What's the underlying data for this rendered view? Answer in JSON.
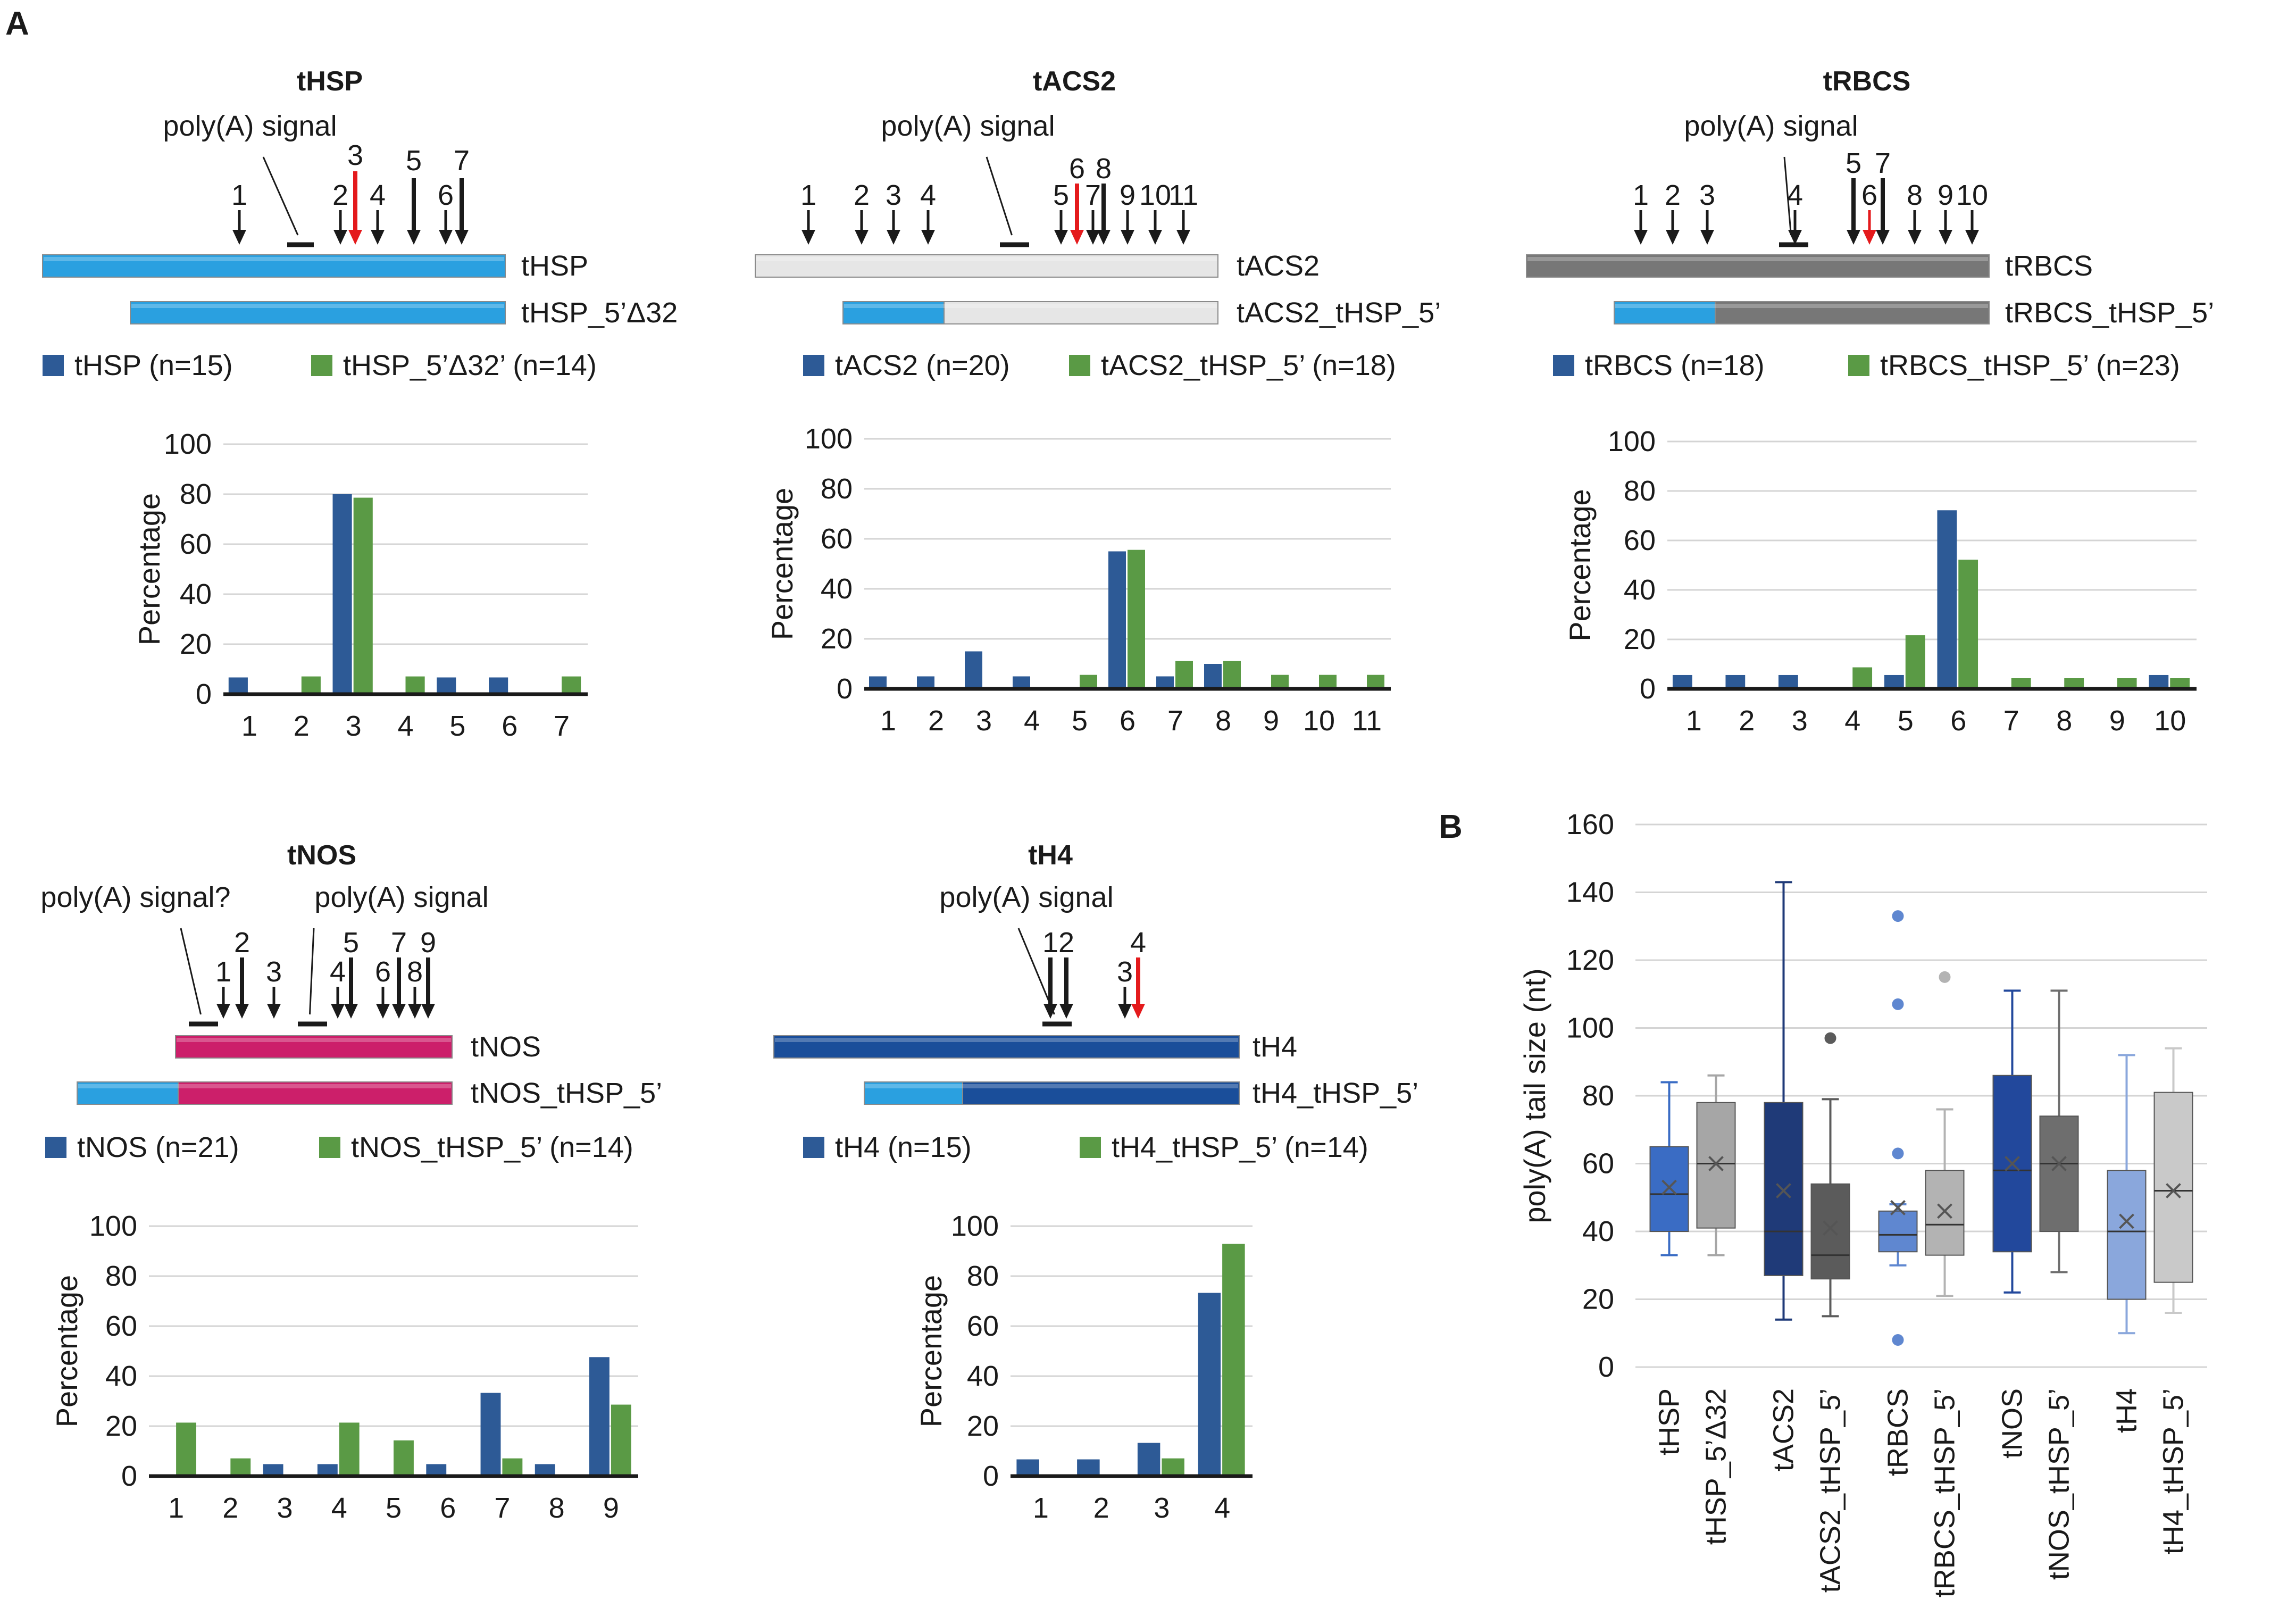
{
  "panel_labels": {
    "a": "A",
    "b": "B"
  },
  "colors": {
    "blue_bar": "#2d5a96",
    "green_bar": "#5a9a45",
    "arrow": "#1a1a1a",
    "arrow_main": "#e41a1c",
    "tHSP": "#2aa0e0",
    "tACS2": "#e6e6e6",
    "tRBCS": "#777777",
    "tNOS": "#cc1f6a",
    "tH4": "#1a4e9a",
    "grid": "#d4d4d4"
  },
  "panels": [
    {
      "title": "tHSP",
      "signals": [
        {
          "label": "poly(A) signal"
        }
      ],
      "sites": [
        "1",
        "2",
        "3",
        "4",
        "5",
        "6",
        "7"
      ],
      "main_site": "3",
      "constructs": [
        {
          "label": "tHSP",
          "segments": [
            "tHSP"
          ]
        },
        {
          "label": "tHSP_5’Δ32",
          "segments": [
            "tHSP"
          ]
        }
      ]
    },
    {
      "title": "tACS2",
      "signals": [
        {
          "label": "poly(A) signal"
        }
      ],
      "sites": [
        "1",
        "2",
        "3",
        "4",
        "5",
        "6",
        "7",
        "8",
        "9",
        "10",
        "11"
      ],
      "main_site": "6",
      "constructs": [
        {
          "label": "tACS2",
          "segments": [
            "tACS2"
          ]
        },
        {
          "label": "tACS2_tHSP_5’",
          "segments": [
            "tHSP",
            "tACS2"
          ]
        }
      ]
    },
    {
      "title": "tRBCS",
      "signals": [
        {
          "label": "poly(A) signal"
        }
      ],
      "sites": [
        "1",
        "2",
        "3",
        "4",
        "5",
        "6",
        "7",
        "8",
        "9",
        "10"
      ],
      "main_site": "6",
      "constructs": [
        {
          "label": "tRBCS",
          "segments": [
            "tRBCS"
          ]
        },
        {
          "label": "tRBCS_tHSP_5’",
          "segments": [
            "tHSP",
            "tRBCS"
          ]
        }
      ]
    },
    {
      "title": "tNOS",
      "signals": [
        {
          "label": "poly(A) signal?"
        },
        {
          "label": "poly(A) signal"
        }
      ],
      "sites": [
        "1",
        "2",
        "3",
        "4",
        "5",
        "6",
        "7",
        "8",
        "9"
      ],
      "main_site": "",
      "constructs": [
        {
          "label": "tNOS",
          "segments": [
            "tNOS"
          ]
        },
        {
          "label": "tNOS_tHSP_5’",
          "segments": [
            "tHSP",
            "tNOS"
          ]
        }
      ]
    },
    {
      "title": "tH4",
      "signals": [
        {
          "label": "poly(A) signal"
        }
      ],
      "sites": [
        "1",
        "2",
        "3",
        "4"
      ],
      "main_site": "4",
      "constructs": [
        {
          "label": "tH4",
          "segments": [
            "tH4"
          ]
        },
        {
          "label": "tH4_tHSP_5’",
          "segments": [
            "tHSP",
            "tH4"
          ]
        }
      ]
    }
  ],
  "chart_data": [
    {
      "type": "bar",
      "title": "tHSP",
      "ylabel": "Percentage",
      "xlabel": "",
      "ylim": [
        0,
        100
      ],
      "yticks": [
        0,
        20,
        40,
        60,
        80,
        100
      ],
      "grid": true,
      "legend": "top",
      "categories": [
        "1",
        "2",
        "3",
        "4",
        "5",
        "6",
        "7"
      ],
      "series": [
        {
          "name": "tHSP (n=15)",
          "values": [
            6.7,
            0,
            80,
            0,
            6.7,
            6.7,
            0
          ]
        },
        {
          "name": "tHSP_5’Δ32’ (n=14)",
          "values": [
            0,
            7.1,
            78.6,
            7.1,
            0,
            0,
            7.1
          ]
        }
      ]
    },
    {
      "type": "bar",
      "title": "tACS2",
      "ylabel": "Percentage",
      "xlabel": "",
      "ylim": [
        0,
        100
      ],
      "yticks": [
        0,
        20,
        40,
        60,
        80,
        100
      ],
      "grid": true,
      "legend": "top",
      "categories": [
        "1",
        "2",
        "3",
        "4",
        "5",
        "6",
        "7",
        "8",
        "9",
        "10",
        "11"
      ],
      "series": [
        {
          "name": "tACS2 (n=20)",
          "values": [
            5,
            5,
            15,
            5,
            0,
            55,
            5,
            10,
            0,
            0,
            0
          ]
        },
        {
          "name": "tACS2_tHSP_5’ (n=18)",
          "values": [
            0,
            0,
            0,
            0,
            5.6,
            55.6,
            11.1,
            11.1,
            5.6,
            5.6,
            5.6
          ]
        }
      ]
    },
    {
      "type": "bar",
      "title": "tRBCS",
      "ylabel": "Percentage",
      "xlabel": "",
      "ylim": [
        0,
        100
      ],
      "yticks": [
        0,
        20,
        40,
        60,
        80,
        100
      ],
      "grid": true,
      "legend": "top",
      "categories": [
        "1",
        "2",
        "3",
        "4",
        "5",
        "6",
        "7",
        "8",
        "9",
        "10"
      ],
      "series": [
        {
          "name": "tRBCS (n=18)",
          "values": [
            5.6,
            5.6,
            5.6,
            0,
            5.6,
            72.2,
            0,
            0,
            0,
            5.6
          ]
        },
        {
          "name": "tRBCS_tHSP_5’ (n=23)",
          "values": [
            0,
            0,
            0,
            8.7,
            21.7,
            52.2,
            4.3,
            4.3,
            4.3,
            4.3
          ]
        }
      ]
    },
    {
      "type": "bar",
      "title": "tNOS",
      "ylabel": "Percentage",
      "xlabel": "",
      "ylim": [
        0,
        100
      ],
      "yticks": [
        0,
        20,
        40,
        60,
        80,
        100
      ],
      "grid": true,
      "legend": "top",
      "categories": [
        "1",
        "2",
        "3",
        "4",
        "5",
        "6",
        "7",
        "8",
        "9"
      ],
      "series": [
        {
          "name": "tNOS (n=21)",
          "values": [
            0,
            0,
            4.8,
            4.8,
            0,
            4.8,
            33.3,
            4.8,
            47.6
          ]
        },
        {
          "name": "tNOS_tHSP_5’ (n=14)",
          "values": [
            21.4,
            7.1,
            0,
            21.4,
            14.3,
            0,
            7.1,
            0,
            28.6
          ]
        }
      ]
    },
    {
      "type": "bar",
      "title": "tH4",
      "ylabel": "Percentage",
      "xlabel": "",
      "ylim": [
        0,
        100
      ],
      "yticks": [
        0,
        20,
        40,
        60,
        80,
        100
      ],
      "grid": true,
      "legend": "top",
      "categories": [
        "1",
        "2",
        "3",
        "4"
      ],
      "series": [
        {
          "name": "tH4 (n=15)",
          "values": [
            6.7,
            6.7,
            13.3,
            73.3
          ]
        },
        {
          "name": "tH4_tHSP_5’ (n=14)",
          "values": [
            0,
            0,
            7.1,
            92.9
          ]
        }
      ]
    },
    {
      "type": "box",
      "title": "",
      "ylabel": "poly(A) tail size (nt)",
      "xlabel": "",
      "ylim": [
        0,
        160
      ],
      "yticks": [
        0,
        20,
        40,
        60,
        80,
        100,
        120,
        140,
        160
      ],
      "grid": true,
      "categories": [
        "tHSP",
        "tHSP_5’Δ32",
        "tACS2",
        "tACS2_tHSP_5’",
        "tRBCS",
        "tRBCS_tHSP_5’",
        "tNOS",
        "tNOS_tHSP_5’",
        "tH4",
        "tH4_tHSP_5’"
      ],
      "boxes": [
        {
          "name": "tHSP",
          "color": "#3a6cc4",
          "min": 33,
          "q1": 40,
          "median": 51,
          "q3": 65,
          "max": 84,
          "mean": 53,
          "outliers": []
        },
        {
          "name": "tHSP_5’Δ32",
          "color": "#a6a6a6",
          "min": 33,
          "q1": 41,
          "median": 60,
          "q3": 78,
          "max": 86,
          "mean": 60,
          "outliers": []
        },
        {
          "name": "tACS2",
          "color": "#1f3a78",
          "min": 14,
          "q1": 27,
          "median": 40,
          "q3": 78,
          "max": 143,
          "mean": 52,
          "outliers": []
        },
        {
          "name": "tACS2_tHSP_5’",
          "color": "#5b5b5b",
          "min": 15,
          "q1": 26,
          "median": 33,
          "q3": 54,
          "max": 79,
          "mean": 41,
          "outliers": [
            97
          ]
        },
        {
          "name": "tRBCS",
          "color": "#5f87d0",
          "min": 30,
          "q1": 34,
          "median": 39,
          "q3": 46,
          "max": 48,
          "mean": 47,
          "outliers": [
            8,
            63,
            107,
            133
          ]
        },
        {
          "name": "tRBCS_tHSP_5’",
          "color": "#b3b3b3",
          "min": 21,
          "q1": 33,
          "median": 42,
          "q3": 58,
          "max": 76,
          "mean": 46,
          "outliers": [
            115
          ]
        },
        {
          "name": "tNOS",
          "color": "#22489c",
          "min": 22,
          "q1": 34,
          "median": 58,
          "q3": 86,
          "max": 111,
          "mean": 60,
          "outliers": []
        },
        {
          "name": "tNOS_tHSP_5’",
          "color": "#6e6e6e",
          "min": 28,
          "q1": 40,
          "median": 60,
          "q3": 74,
          "max": 111,
          "mean": 60,
          "outliers": []
        },
        {
          "name": "tH4",
          "color": "#8aa7dc",
          "min": 10,
          "q1": 20,
          "median": 40,
          "q3": 58,
          "max": 92,
          "mean": 43,
          "outliers": []
        },
        {
          "name": "tH4_tHSP_5’",
          "color": "#c9c9c9",
          "min": 16,
          "q1": 25,
          "median": 52,
          "q3": 81,
          "max": 94,
          "mean": 52,
          "outliers": []
        }
      ]
    }
  ]
}
